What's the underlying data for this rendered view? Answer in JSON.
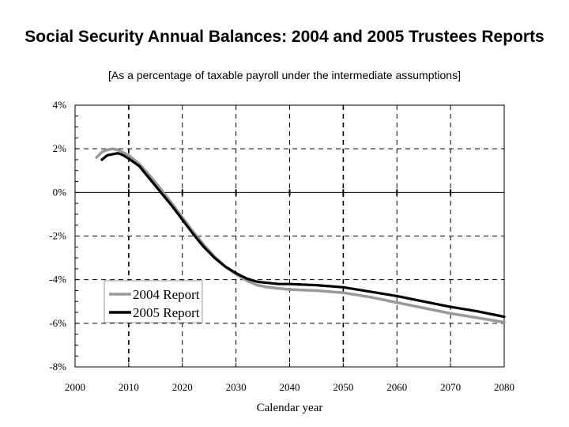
{
  "chart_data": {
    "type": "line",
    "title": "Social Security Annual Balances: 2004 and 2005 Trustees Reports",
    "subtitle": "[As a percentage of taxable payroll under the intermediate assumptions]",
    "xlabel": "Calendar year",
    "ylabel": "",
    "xlim": [
      2000,
      2080
    ],
    "ylim": [
      -8,
      4
    ],
    "x_ticks": [
      2000,
      2010,
      2020,
      2030,
      2040,
      2050,
      2060,
      2070,
      2080
    ],
    "x_tick_labels": [
      "2000",
      "2010",
      "2020",
      "2030",
      "2040",
      "2050",
      "2060",
      "2070",
      "2080"
    ],
    "y_ticks": [
      4,
      2,
      0,
      -2,
      -4,
      -6,
      -8
    ],
    "y_tick_labels": [
      "4%",
      "2%",
      "0%",
      "-2%",
      "-4%",
      "-6%",
      "-8%"
    ],
    "grid": true,
    "legend_position": "bottom-left",
    "series": [
      {
        "name": "2004 Report",
        "color": "#999999",
        "x": [
          2004,
          2005,
          2006,
          2007,
          2008,
          2010,
          2012,
          2014,
          2016,
          2018,
          2020,
          2022,
          2024,
          2026,
          2028,
          2030,
          2032,
          2034,
          2036,
          2038,
          2040,
          2045,
          2050,
          2055,
          2060,
          2065,
          2070,
          2075,
          2080
        ],
        "values": [
          1.6,
          1.85,
          1.95,
          2.0,
          1.95,
          1.7,
          1.3,
          0.75,
          0.15,
          -0.5,
          -1.15,
          -1.8,
          -2.4,
          -2.95,
          -3.4,
          -3.75,
          -4.05,
          -4.25,
          -4.35,
          -4.4,
          -4.45,
          -4.5,
          -4.6,
          -4.8,
          -5.05,
          -5.3,
          -5.55,
          -5.75,
          -5.95
        ]
      },
      {
        "name": "2005 Report",
        "color": "#000000",
        "x": [
          2005,
          2006,
          2007,
          2008,
          2009,
          2010,
          2012,
          2014,
          2016,
          2018,
          2020,
          2022,
          2024,
          2026,
          2028,
          2030,
          2032,
          2034,
          2036,
          2038,
          2040,
          2045,
          2050,
          2055,
          2060,
          2065,
          2070,
          2075,
          2080
        ],
        "values": [
          1.5,
          1.7,
          1.75,
          1.8,
          1.7,
          1.55,
          1.2,
          0.6,
          0.0,
          -0.6,
          -1.25,
          -1.9,
          -2.5,
          -3.0,
          -3.4,
          -3.7,
          -3.95,
          -4.1,
          -4.15,
          -4.2,
          -4.2,
          -4.25,
          -4.35,
          -4.55,
          -4.75,
          -5.0,
          -5.25,
          -5.45,
          -5.7
        ]
      }
    ]
  }
}
